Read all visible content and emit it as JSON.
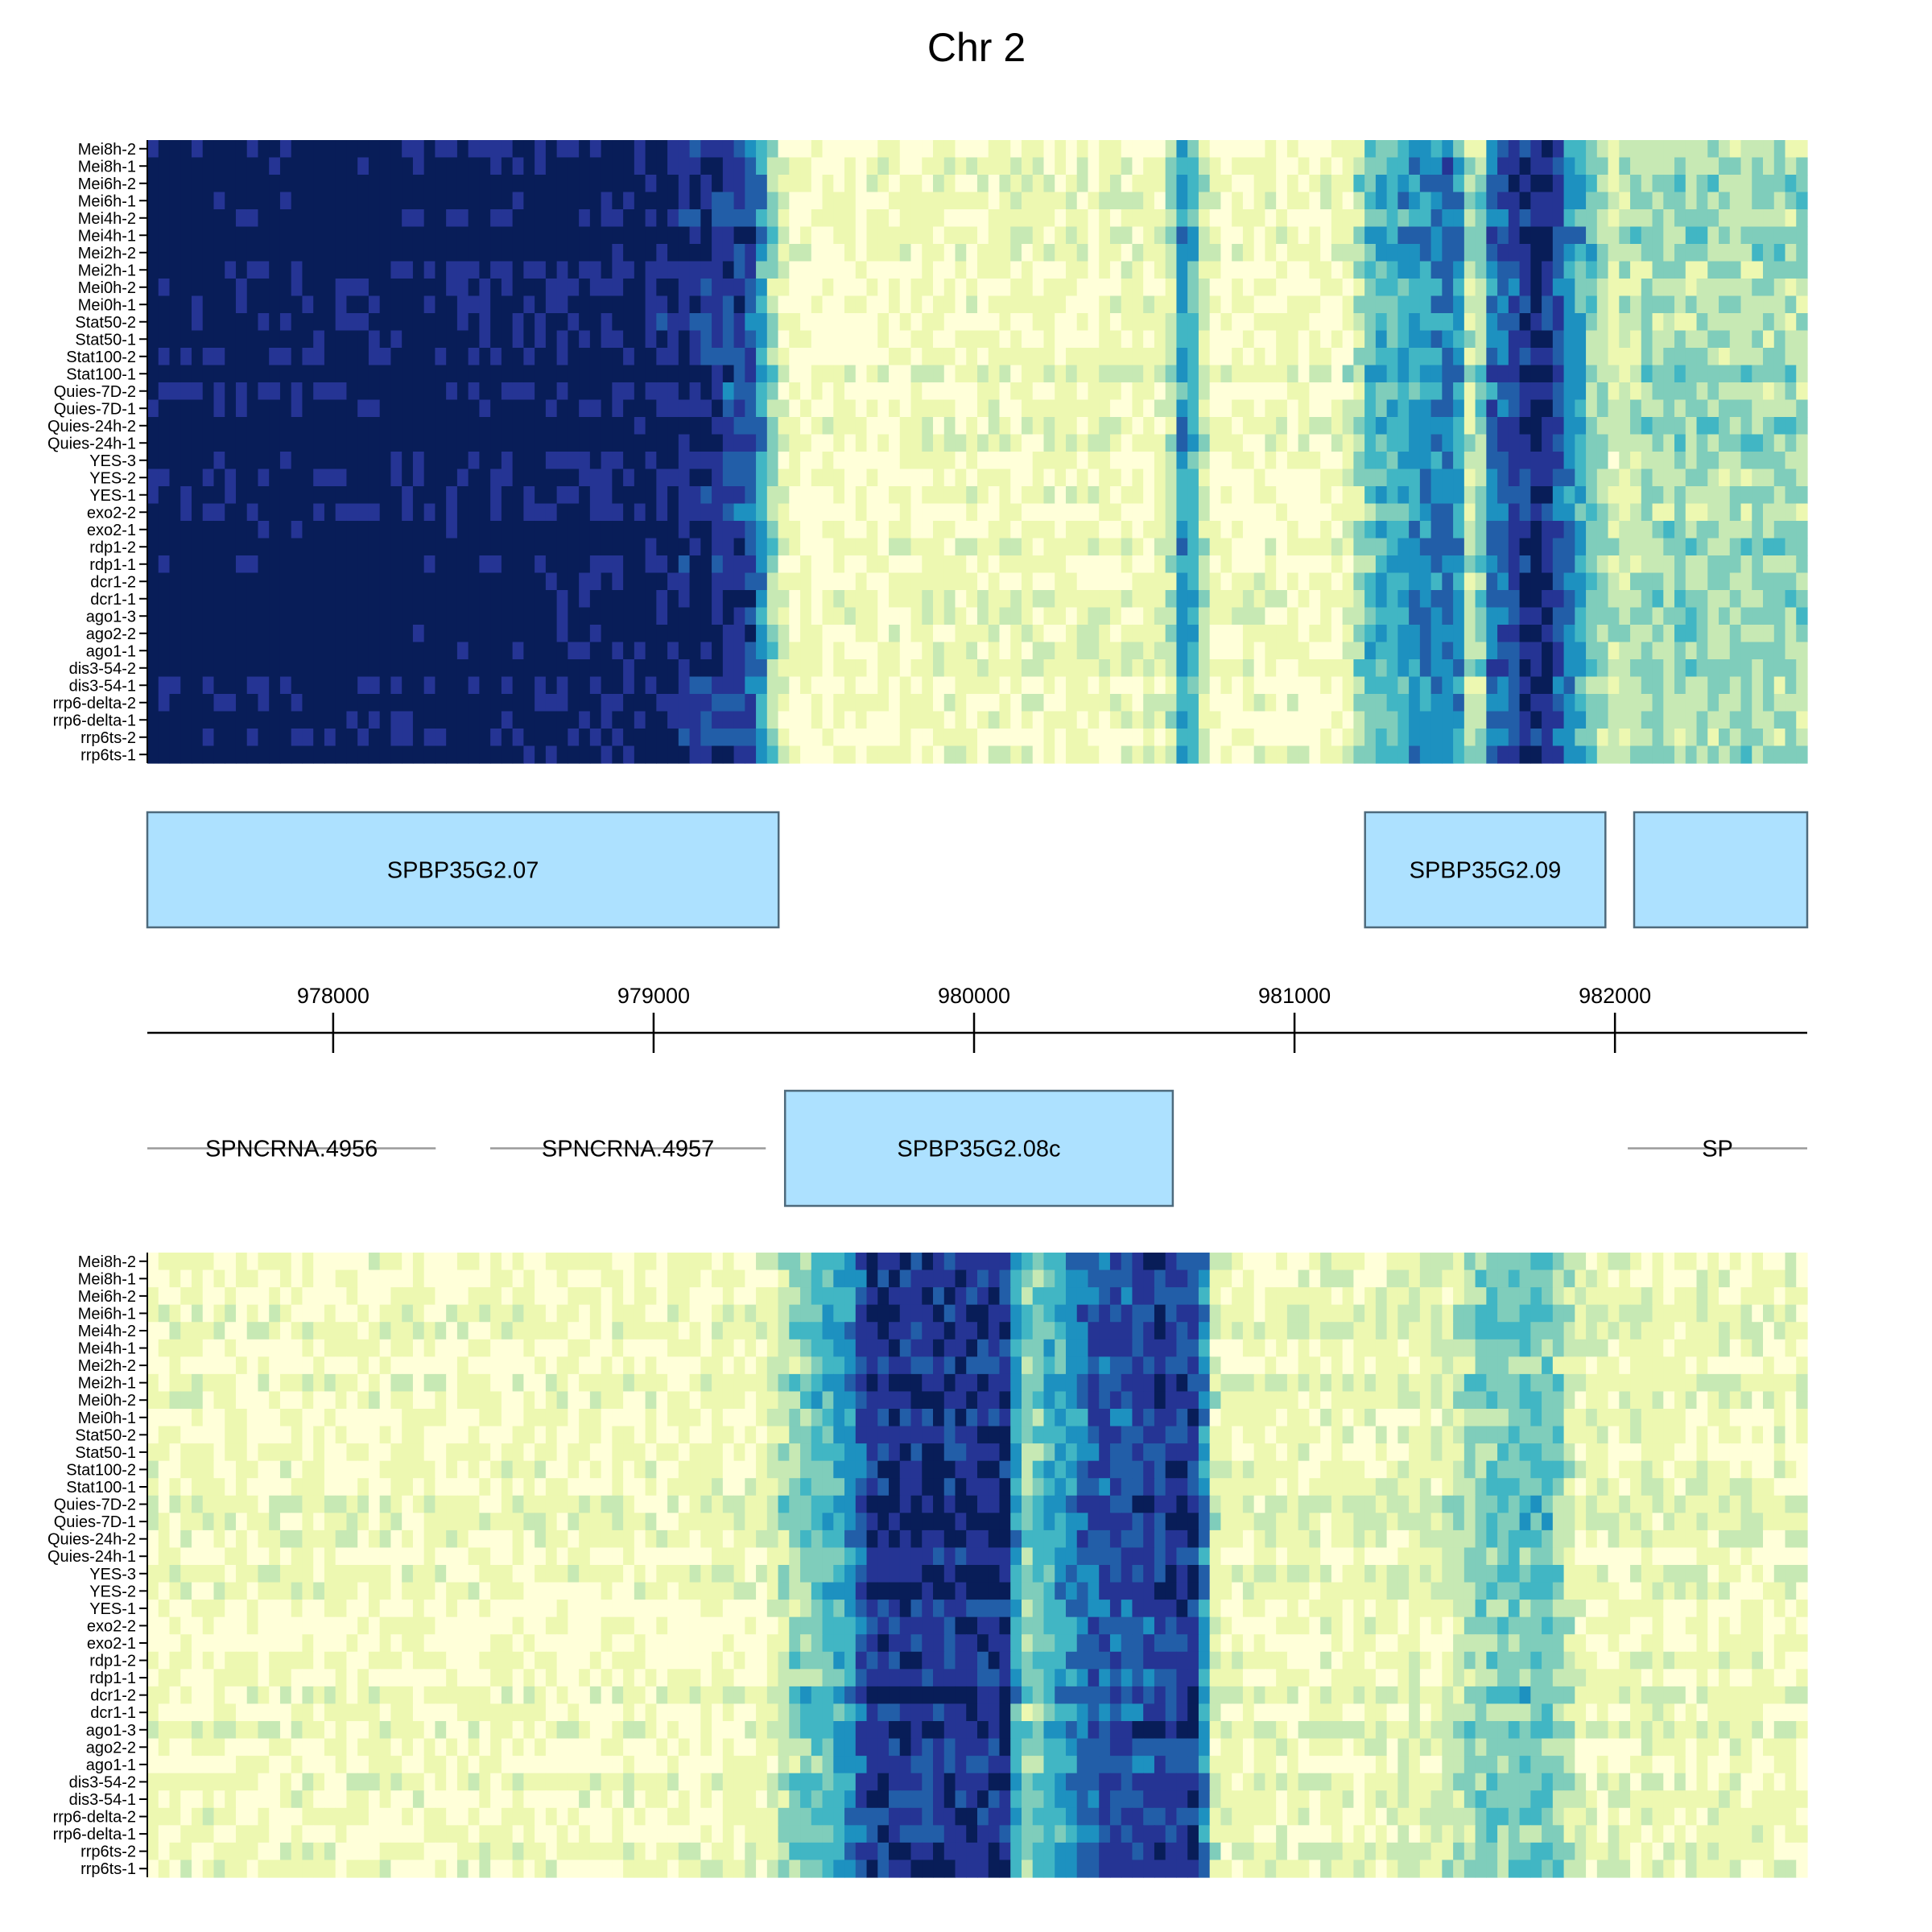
{
  "chart_data": {
    "type": "heatmap",
    "title": "Chr 2",
    "samples": [
      "Mei8h-2",
      "Mei8h-1",
      "Mei6h-2",
      "Mei6h-1",
      "Mei4h-2",
      "Mei4h-1",
      "Mei2h-2",
      "Mei2h-1",
      "Mei0h-2",
      "Mei0h-1",
      "Stat50-2",
      "Stat50-1",
      "Stat100-2",
      "Stat100-1",
      "Quies-7D-2",
      "Quies-7D-1",
      "Quies-24h-2",
      "Quies-24h-1",
      "YES-3",
      "YES-2",
      "YES-1",
      "exo2-2",
      "exo2-1",
      "rdp1-2",
      "rdp1-1",
      "dcr1-2",
      "dcr1-1",
      "ago1-3",
      "ago2-2",
      "ago1-1",
      "dis3-54-2",
      "dis3-54-1",
      "rrp6-delta-2",
      "rrp6-delta-1",
      "rrp6ts-2",
      "rrp6ts-1"
    ],
    "xlim": [
      977420,
      982600
    ],
    "axis_ticks": [
      "978000",
      "979000",
      "980000",
      "981000",
      "982000"
    ],
    "colorscale": [
      "#ffffd9",
      "#edf8b1",
      "#c7e9b4",
      "#7fcdbb",
      "#41b6c4",
      "#1d91c0",
      "#225ea8",
      "#253494",
      "#081d58"
    ],
    "top_strand": {
      "genes": [
        {
          "name": "SPBP35G2.07",
          "start": 977420,
          "end": 979390,
          "type": "coding"
        },
        {
          "name": "SPBP35G2.09",
          "start": 981220,
          "end": 981970,
          "type": "coding"
        },
        {
          "name": "",
          "start": 982060,
          "end": 982600,
          "type": "coding"
        }
      ],
      "signal_profile": [
        [
          977420,
          8.3
        ],
        [
          977700,
          8.2
        ],
        [
          978000,
          8.3
        ],
        [
          978600,
          8.1
        ],
        [
          979000,
          7.8
        ],
        [
          979300,
          6.6
        ],
        [
          979420,
          0.25
        ],
        [
          979700,
          0.5
        ],
        [
          980000,
          0.8
        ],
        [
          980600,
          0.8
        ],
        [
          980660,
          5.5
        ],
        [
          980740,
          0.5
        ],
        [
          981150,
          0.6
        ],
        [
          981230,
          3.5
        ],
        [
          981500,
          5.8
        ],
        [
          981560,
          0.7
        ],
        [
          981610,
          5.5
        ],
        [
          981770,
          7.8
        ],
        [
          981990,
          1.5
        ],
        [
          982100,
          2.5
        ],
        [
          982600,
          2.5
        ]
      ]
    },
    "bottom_strand": {
      "genes": [
        {
          "name": "SPNCRNA.4956",
          "start": 977420,
          "end": 978320,
          "type": "ncRNA"
        },
        {
          "name": "SPNCRNA.4957",
          "start": 978490,
          "end": 979350,
          "type": "ncRNA"
        },
        {
          "name": "SPBP35G2.08c",
          "start": 979410,
          "end": 980620,
          "type": "coding"
        },
        {
          "name": "SP",
          "start": 982040,
          "end": 982600,
          "type": "ncRNA"
        }
      ],
      "signal_profile": [
        [
          977420,
          0.6
        ],
        [
          979000,
          0.5
        ],
        [
          979350,
          0.8
        ],
        [
          979420,
          2.5
        ],
        [
          979600,
          4.5
        ],
        [
          979680,
          7.0
        ],
        [
          980100,
          7.2
        ],
        [
          980150,
          2.5
        ],
        [
          980250,
          4.0
        ],
        [
          980360,
          6.0
        ],
        [
          980700,
          7.0
        ],
        [
          980760,
          0.8
        ],
        [
          981300,
          1.0
        ],
        [
          981500,
          1.5
        ],
        [
          981580,
          3.0
        ],
        [
          981800,
          3.3
        ],
        [
          981900,
          1.0
        ],
        [
          982600,
          0.8
        ]
      ]
    }
  }
}
